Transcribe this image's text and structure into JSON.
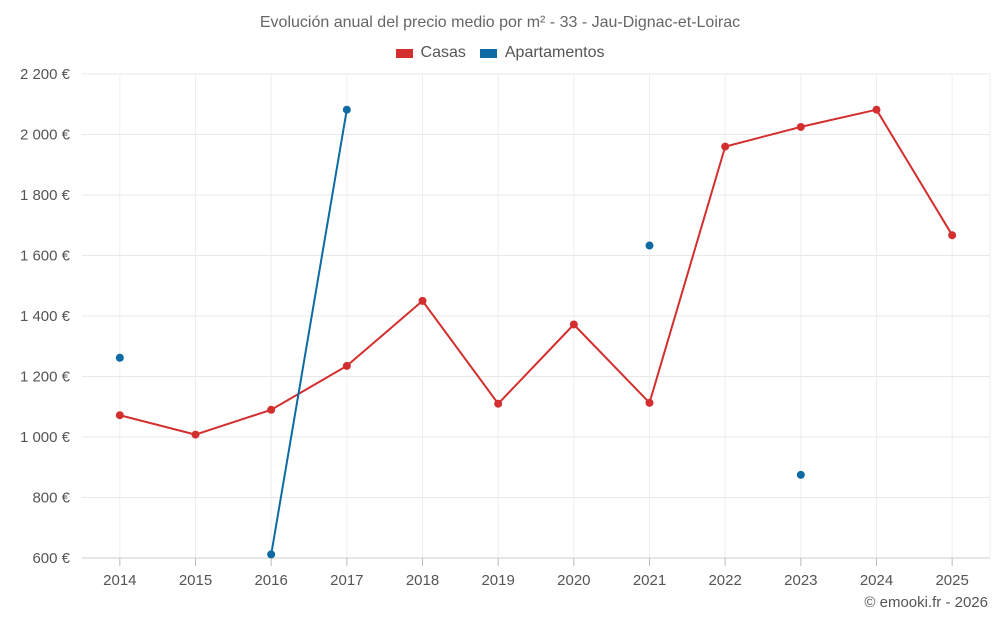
{
  "chart_data": {
    "type": "line",
    "title": "Evolución anual del precio medio por m² - 33 - Jau-Dignac-et-Loirac",
    "categories": [
      "2014",
      "2015",
      "2016",
      "2017",
      "2018",
      "2019",
      "2020",
      "2021",
      "2022",
      "2023",
      "2024",
      "2025"
    ],
    "y_ticks": [
      600,
      800,
      1000,
      1200,
      1400,
      1600,
      1800,
      2000,
      2200
    ],
    "y_tick_labels": [
      "600 €",
      "800 €",
      "1 000 €",
      "1 200 €",
      "1 400 €",
      "1 600 €",
      "1 800 €",
      "2 000 €",
      "2 200 €"
    ],
    "ylim": [
      600,
      2200
    ],
    "xlabel": "",
    "ylabel": "",
    "grid": true,
    "legend_position": "top-center",
    "series": [
      {
        "name": "Casas",
        "color": "#d32f2f",
        "values": [
          1072,
          1008,
          1090,
          1235,
          1450,
          1110,
          1372,
          1113,
          1960,
          2025,
          2082,
          1667
        ]
      },
      {
        "name": "Apartamentos",
        "color": "#0d6aa3",
        "values": [
          1262,
          null,
          612,
          2082,
          null,
          null,
          null,
          1633,
          null,
          875,
          null,
          null
        ]
      }
    ]
  },
  "credit": "© emooki.fr - 2026"
}
